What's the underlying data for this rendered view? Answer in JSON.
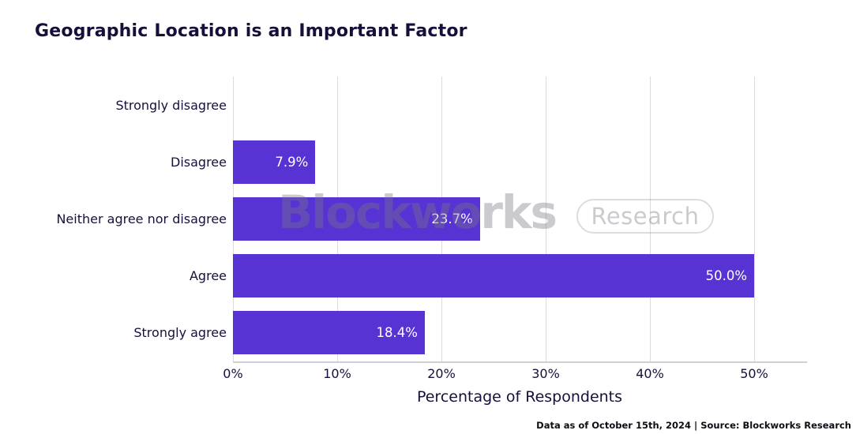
{
  "title": "Geographic Location is an Important Factor",
  "watermark": {
    "brand": "Blockworks",
    "badge": "Research"
  },
  "footer": "Data as of October 15th, 2024 | Source: Blockworks Research",
  "colors": {
    "bar": "#5733D3",
    "text": "#15103A",
    "grid": "#DADAE0",
    "axis_line": "#CFCFD4",
    "value_label": "#FFFFFF",
    "background": "#FFFFFF"
  },
  "chart_data": {
    "type": "bar",
    "orientation": "horizontal",
    "title": "Geographic Location is an Important Factor",
    "categories": [
      "Strongly disagree",
      "Disagree",
      "Neither agree nor disagree",
      "Agree",
      "Strongly agree"
    ],
    "values": [
      0,
      7.9,
      23.7,
      50.0,
      18.4
    ],
    "value_labels": [
      "",
      "7.9%",
      "23.7%",
      "50.0%",
      "18.4%"
    ],
    "xlabel": "Percentage of Respondents",
    "ylabel": "",
    "x_tick_labels": [
      "0%",
      "10%",
      "20%",
      "30%",
      "40%",
      "50%"
    ],
    "x_tick_values": [
      0,
      10,
      20,
      30,
      40,
      50
    ],
    "xlim": [
      0,
      55
    ],
    "grid": true,
    "legend": false
  }
}
